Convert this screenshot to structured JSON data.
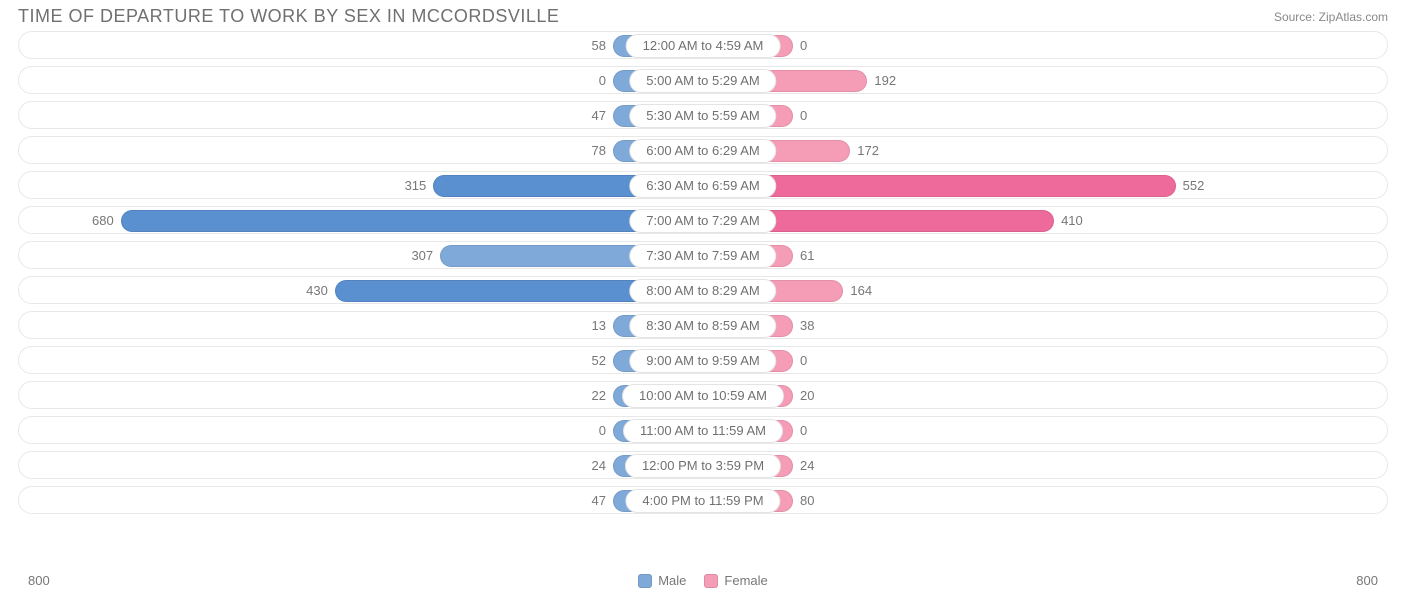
{
  "title": "TIME OF DEPARTURE TO WORK BY SEX IN MCCORDSVILLE",
  "source": "Source: ZipAtlas.com",
  "axis_max": 800,
  "axis_left_label": "800",
  "axis_right_label": "800",
  "colors": {
    "male_base": "#7fa9d8",
    "male_highlight": "#5a8fd0",
    "female_base": "#f59cb6",
    "female_highlight": "#ed6a9a",
    "track_border": "#e8e8e8",
    "text": "#707070",
    "value_text": "#777777",
    "background": "#ffffff"
  },
  "legend": {
    "male": "Male",
    "female": "Female"
  },
  "min_bar_width": 90,
  "rows": [
    {
      "category": "12:00 AM to 4:59 AM",
      "male": 58,
      "female": 0
    },
    {
      "category": "5:00 AM to 5:29 AM",
      "male": 0,
      "female": 192
    },
    {
      "category": "5:30 AM to 5:59 AM",
      "male": 47,
      "female": 0
    },
    {
      "category": "6:00 AM to 6:29 AM",
      "male": 78,
      "female": 172
    },
    {
      "category": "6:30 AM to 6:59 AM",
      "male": 315,
      "female": 552,
      "male_hl": true,
      "female_hl": true
    },
    {
      "category": "7:00 AM to 7:29 AM",
      "male": 680,
      "female": 410,
      "male_hl": true,
      "female_hl": true
    },
    {
      "category": "7:30 AM to 7:59 AM",
      "male": 307,
      "female": 61
    },
    {
      "category": "8:00 AM to 8:29 AM",
      "male": 430,
      "female": 164,
      "male_hl": true
    },
    {
      "category": "8:30 AM to 8:59 AM",
      "male": 13,
      "female": 38
    },
    {
      "category": "9:00 AM to 9:59 AM",
      "male": 52,
      "female": 0
    },
    {
      "category": "10:00 AM to 10:59 AM",
      "male": 22,
      "female": 20
    },
    {
      "category": "11:00 AM to 11:59 AM",
      "male": 0,
      "female": 0
    },
    {
      "category": "12:00 PM to 3:59 PM",
      "male": 24,
      "female": 24
    },
    {
      "category": "4:00 PM to 11:59 PM",
      "male": 47,
      "female": 80
    }
  ]
}
